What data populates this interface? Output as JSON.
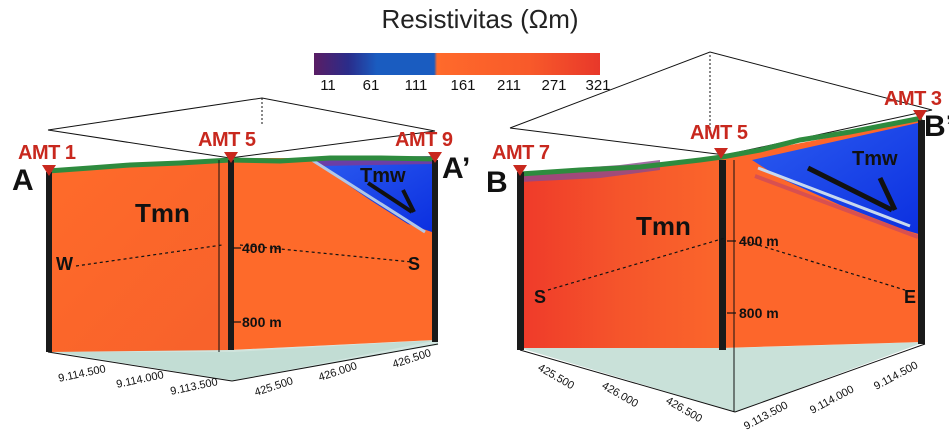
{
  "colorbar": {
    "title": "Resistivitas (Ωm)",
    "ticks": [
      "11",
      "61",
      "111",
      "161",
      "211",
      "271",
      "321"
    ],
    "colors": [
      "#4a1a5e",
      "#1565c0",
      "#0d47a1",
      "#ff6a2b",
      "#f7552a",
      "#ee3d2a"
    ]
  },
  "left_section": {
    "stations": {
      "amt1": "AMT 1",
      "amt5": "AMT 5",
      "amt9": "AMT 9"
    },
    "section_start": "A",
    "section_end": "A’",
    "unit_main": "Tmn",
    "unit_upper": "Tmw",
    "dir_left": "W",
    "dir_right": "S",
    "depth_400": "400 m",
    "depth_800": "800 m",
    "y_coords": [
      "9.114.500",
      "9.114.000",
      "9.113.500"
    ],
    "x_coords": [
      "425.500",
      "426.000",
      "426.500"
    ]
  },
  "right_section": {
    "stations": {
      "amt7": "AMT 7",
      "amt5": "AMT 5",
      "amt3": "AMT 3"
    },
    "section_start": "B",
    "section_end": "B’",
    "unit_main": "Tmn",
    "unit_upper": "Tmw",
    "dir_left": "S",
    "dir_right": "E",
    "depth_400": "400 m",
    "depth_800": "800 m",
    "x_coords": [
      "425.500",
      "426.000",
      "426.500"
    ],
    "y_coords": [
      "9.114.500",
      "9.114.000",
      "9.113.500"
    ]
  },
  "style": {
    "resistive_orange": "#ff6a2b",
    "conductive_blue": "#1a3ff0",
    "topography_green": "#2e8b3e",
    "station_red": "#c8281e",
    "base_teal": "#b9d8d0"
  }
}
